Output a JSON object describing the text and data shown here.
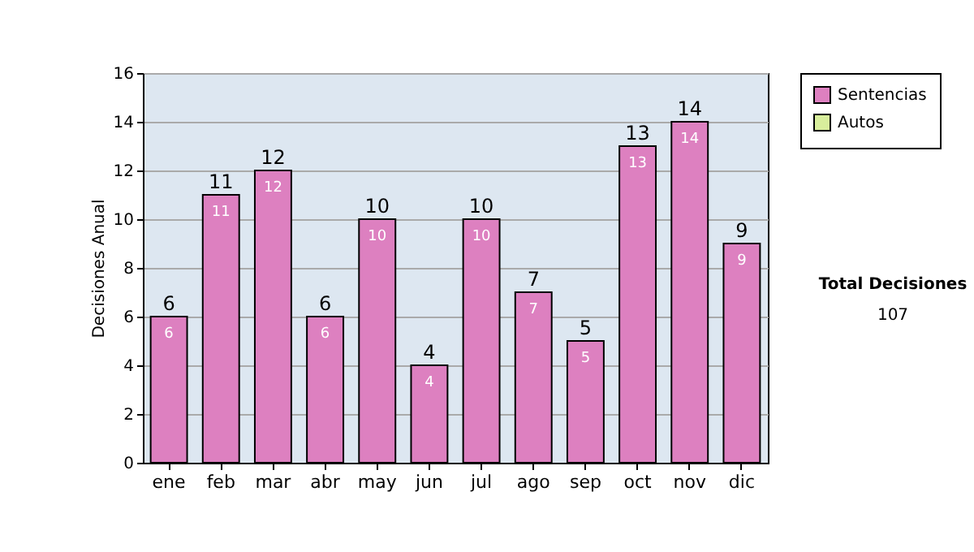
{
  "chart_data": {
    "type": "bar",
    "ylabel": "Decisiones Anual",
    "categories": [
      "ene",
      "feb",
      "mar",
      "abr",
      "may",
      "jun",
      "jul",
      "ago",
      "sep",
      "oct",
      "nov",
      "dic"
    ],
    "series": [
      {
        "name": "Sentencias",
        "color": "#dd80c0",
        "values": [
          6,
          11,
          12,
          6,
          10,
          4,
          10,
          7,
          5,
          13,
          14,
          9
        ],
        "value_labels": [
          "6",
          "11",
          "12",
          "6",
          "10",
          "4",
          "10",
          "7",
          "5",
          "13",
          "14",
          "9"
        ]
      },
      {
        "name": "Autos",
        "color": "#d8ee9c",
        "values": [
          null,
          null,
          null,
          null,
          null,
          null,
          null,
          null,
          null,
          null,
          null,
          null
        ]
      }
    ],
    "stacked": true,
    "totals": [
      "6",
      "11",
      "12",
      "6",
      "10",
      "4",
      "10",
      "7",
      "5",
      "13",
      "14",
      "9"
    ],
    "ylim": [
      0,
      16
    ],
    "yticks": [
      0,
      2,
      4,
      6,
      8,
      10,
      12,
      14,
      16
    ],
    "grid": "y",
    "legend": "right",
    "annotations": [
      "Total Decisiones",
      "107"
    ]
  }
}
